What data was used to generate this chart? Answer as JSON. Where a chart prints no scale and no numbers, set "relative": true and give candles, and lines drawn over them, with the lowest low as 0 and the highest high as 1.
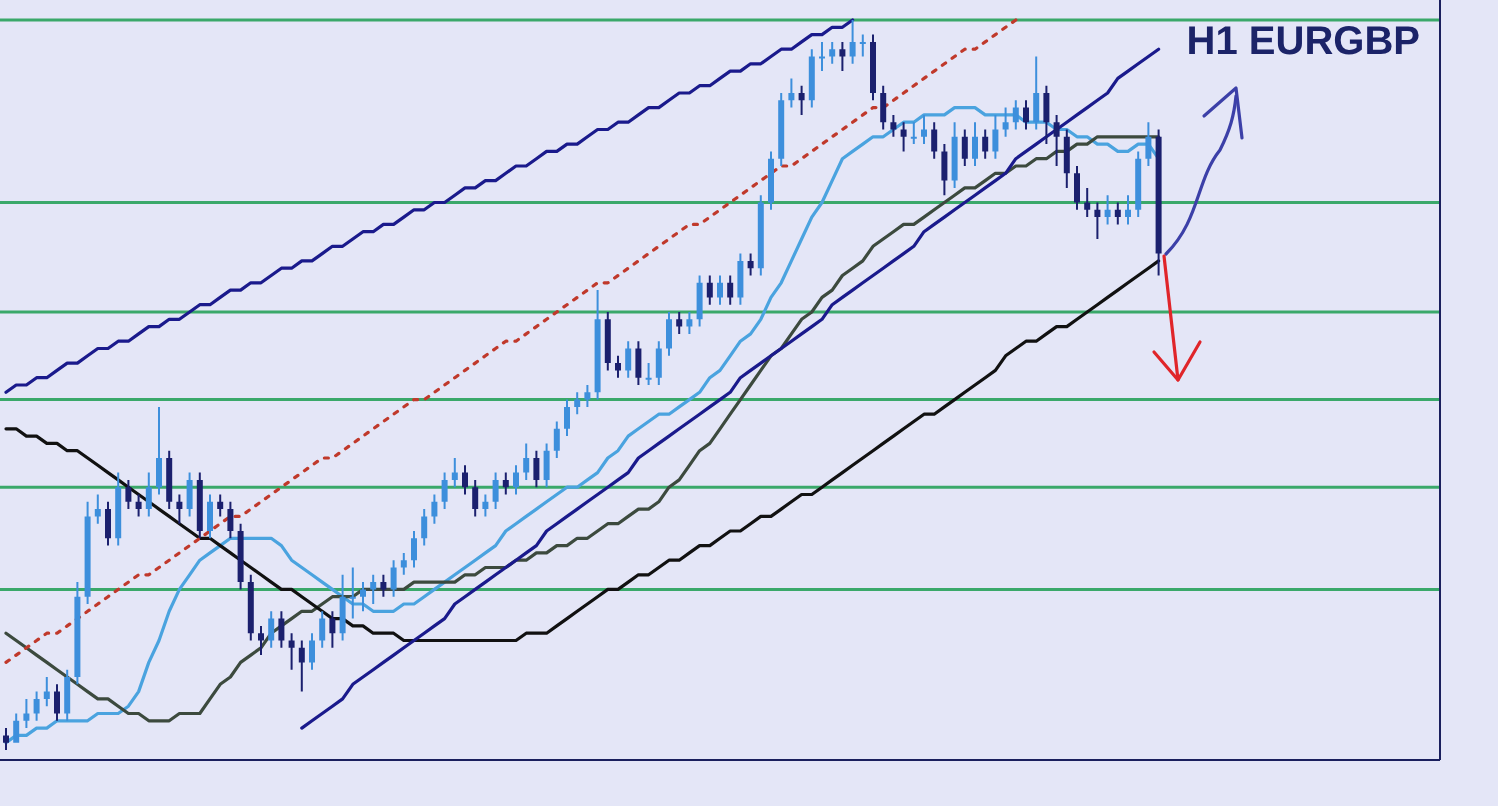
{
  "chart_data": {
    "type": "candlestick",
    "title": "H1 EURGBP",
    "relative": true,
    "categories": [
      null,
      null,
      null,
      null,
      null,
      null,
      null,
      null,
      null,
      null,
      null,
      null,
      null,
      null,
      null,
      null,
      null,
      null,
      null,
      null,
      null,
      null,
      null,
      null,
      null,
      null,
      null,
      null,
      null,
      null,
      null,
      null,
      null,
      null,
      null,
      null,
      null,
      null,
      null,
      null,
      null,
      null,
      null,
      null,
      null,
      null,
      null,
      null,
      null,
      null,
      null,
      null,
      null,
      null,
      null,
      null,
      null,
      null,
      null,
      null,
      null,
      null,
      null,
      null,
      null,
      null,
      null,
      null,
      null,
      null,
      null,
      null,
      null,
      null,
      null,
      null,
      null,
      null,
      null,
      null,
      null,
      null,
      null,
      null,
      null,
      null,
      null,
      null,
      null,
      null,
      null,
      null,
      null,
      null,
      null,
      null,
      null,
      null,
      null,
      null,
      null,
      null,
      null,
      null,
      null,
      null,
      null,
      null,
      null,
      null,
      null,
      null,
      null,
      null
    ],
    "colors": [
      "#1b206e",
      "#3d8fdc",
      "#3d8fdc",
      "#3d8fdc",
      "#3d8fdc",
      "#1b206e",
      "#3d8fdc",
      "#3d8fdc",
      "#3d8fdc",
      "#3d8fdc",
      "#1b206e",
      "#3d8fdc",
      "#1b206e",
      "#1b206e",
      "#3d8fdc",
      "#3d8fdc",
      "#1b206e",
      "#1b206e",
      "#3d8fdc",
      "#1b206e",
      "#3d8fdc",
      "#1b206e",
      "#1b206e",
      "#1b206e",
      "#1b206e",
      "#1b206e",
      "#3d8fdc",
      "#1b206e",
      "#1b206e",
      "#1b206e",
      "#3d8fdc",
      "#3d8fdc",
      "#1b206e",
      "#3d8fdc",
      "#3d8fdc",
      "#3d8fdc",
      "#3d8fdc",
      "#1b206e",
      "#3d8fdc",
      "#3d8fdc",
      "#3d8fdc",
      "#3d8fdc",
      "#3d8fdc",
      "#3d8fdc",
      "#3d8fdc",
      "#1b206e",
      "#1b206e",
      "#3d8fdc",
      "#3d8fdc",
      "#1b206e",
      "#3d8fdc",
      "#3d8fdc",
      "#1b206e",
      "#3d8fdc",
      "#3d8fdc",
      "#3d8fdc",
      "#3d8fdc",
      "#3d8fdc",
      "#3d8fdc",
      "#1b206e",
      "#1b206e",
      "#3d8fdc",
      "#1b206e",
      "#3d8fdc",
      "#3d8fdc",
      "#3d8fdc",
      "#1b206e",
      "#3d8fdc",
      "#3d8fdc",
      "#1b206e",
      "#3d8fdc",
      "#1b206e",
      "#3d8fdc",
      "#1b206e",
      "#3d8fdc",
      "#3d8fdc",
      "#3d8fdc",
      "#3d8fdc",
      "#1b206e",
      "#3d8fdc",
      "#3d8fdc",
      "#3d8fdc",
      "#1b206e",
      "#3d8fdc",
      "#3d8fdc",
      "#1b206e",
      "#1b206e",
      "#1b206e",
      "#1b206e",
      "#3d8fdc",
      "#3d8fdc",
      "#1b206e",
      "#1b206e",
      "#3d8fdc",
      "#1b206e",
      "#3d8fdc",
      "#1b206e",
      "#3d8fdc",
      "#3d8fdc",
      "#3d8fdc",
      "#1b206e",
      "#3d8fdc",
      "#1b206e",
      "#1b206e",
      "#1b206e",
      "#1b206e",
      "#1b206e",
      "#1b206e",
      "#3d8fdc",
      "#1b206e",
      "#3d8fdc",
      "#3d8fdc",
      "#3d8fdc",
      "#1b206e"
    ],
    "ohlc": [
      [
        0.02,
        0.03,
        0.0,
        0.01
      ],
      [
        0.01,
        0.05,
        0.01,
        0.04
      ],
      [
        0.04,
        0.07,
        0.03,
        0.05
      ],
      [
        0.05,
        0.08,
        0.04,
        0.07
      ],
      [
        0.07,
        0.1,
        0.06,
        0.08
      ],
      [
        0.08,
        0.09,
        0.04,
        0.05
      ],
      [
        0.05,
        0.11,
        0.04,
        0.1
      ],
      [
        0.1,
        0.23,
        0.09,
        0.21
      ],
      [
        0.21,
        0.34,
        0.2,
        0.32
      ],
      [
        0.32,
        0.35,
        0.31,
        0.33
      ],
      [
        0.33,
        0.34,
        0.28,
        0.29
      ],
      [
        0.29,
        0.38,
        0.28,
        0.36
      ],
      [
        0.36,
        0.37,
        0.33,
        0.34
      ],
      [
        0.34,
        0.35,
        0.32,
        0.33
      ],
      [
        0.33,
        0.38,
        0.32,
        0.36
      ],
      [
        0.36,
        0.47,
        0.35,
        0.4
      ],
      [
        0.4,
        0.41,
        0.33,
        0.34
      ],
      [
        0.34,
        0.35,
        0.31,
        0.33
      ],
      [
        0.33,
        0.38,
        0.32,
        0.37
      ],
      [
        0.37,
        0.38,
        0.29,
        0.3
      ],
      [
        0.3,
        0.35,
        0.29,
        0.34
      ],
      [
        0.34,
        0.35,
        0.32,
        0.33
      ],
      [
        0.33,
        0.34,
        0.29,
        0.3
      ],
      [
        0.3,
        0.31,
        0.22,
        0.23
      ],
      [
        0.23,
        0.24,
        0.15,
        0.16
      ],
      [
        0.16,
        0.17,
        0.13,
        0.15
      ],
      [
        0.15,
        0.19,
        0.14,
        0.18
      ],
      [
        0.18,
        0.19,
        0.14,
        0.15
      ],
      [
        0.15,
        0.16,
        0.11,
        0.14
      ],
      [
        0.14,
        0.15,
        0.08,
        0.12
      ],
      [
        0.12,
        0.16,
        0.11,
        0.15
      ],
      [
        0.15,
        0.19,
        0.14,
        0.18
      ],
      [
        0.18,
        0.19,
        0.14,
        0.16
      ],
      [
        0.16,
        0.24,
        0.15,
        0.21
      ],
      [
        0.21,
        0.25,
        0.18,
        0.21
      ],
      [
        0.21,
        0.23,
        0.19,
        0.22
      ],
      [
        0.22,
        0.24,
        0.2,
        0.23
      ],
      [
        0.23,
        0.24,
        0.21,
        0.22
      ],
      [
        0.22,
        0.26,
        0.21,
        0.25
      ],
      [
        0.25,
        0.27,
        0.24,
        0.26
      ],
      [
        0.26,
        0.3,
        0.25,
        0.29
      ],
      [
        0.29,
        0.33,
        0.28,
        0.32
      ],
      [
        0.32,
        0.35,
        0.31,
        0.34
      ],
      [
        0.34,
        0.38,
        0.33,
        0.37
      ],
      [
        0.37,
        0.4,
        0.36,
        0.38
      ],
      [
        0.38,
        0.39,
        0.35,
        0.36
      ],
      [
        0.36,
        0.37,
        0.32,
        0.33
      ],
      [
        0.33,
        0.35,
        0.32,
        0.34
      ],
      [
        0.34,
        0.38,
        0.33,
        0.37
      ],
      [
        0.37,
        0.38,
        0.35,
        0.36
      ],
      [
        0.36,
        0.39,
        0.35,
        0.38
      ],
      [
        0.38,
        0.42,
        0.37,
        0.4
      ],
      [
        0.4,
        0.41,
        0.36,
        0.37
      ],
      [
        0.37,
        0.42,
        0.36,
        0.41
      ],
      [
        0.41,
        0.45,
        0.4,
        0.44
      ],
      [
        0.44,
        0.48,
        0.43,
        0.47
      ],
      [
        0.47,
        0.49,
        0.46,
        0.48
      ],
      [
        0.48,
        0.5,
        0.47,
        0.49
      ],
      [
        0.49,
        0.63,
        0.48,
        0.59
      ],
      [
        0.59,
        0.6,
        0.52,
        0.53
      ],
      [
        0.53,
        0.54,
        0.51,
        0.52
      ],
      [
        0.52,
        0.56,
        0.51,
        0.55
      ],
      [
        0.55,
        0.56,
        0.5,
        0.51
      ],
      [
        0.51,
        0.53,
        0.5,
        0.51
      ],
      [
        0.51,
        0.56,
        0.5,
        0.55
      ],
      [
        0.55,
        0.6,
        0.54,
        0.59
      ],
      [
        0.59,
        0.6,
        0.57,
        0.58
      ],
      [
        0.58,
        0.6,
        0.57,
        0.59
      ],
      [
        0.59,
        0.65,
        0.58,
        0.64
      ],
      [
        0.64,
        0.65,
        0.61,
        0.62
      ],
      [
        0.62,
        0.65,
        0.61,
        0.64
      ],
      [
        0.64,
        0.65,
        0.61,
        0.62
      ],
      [
        0.62,
        0.68,
        0.61,
        0.67
      ],
      [
        0.67,
        0.68,
        0.65,
        0.66
      ],
      [
        0.66,
        0.76,
        0.65,
        0.75
      ],
      [
        0.75,
        0.82,
        0.74,
        0.81
      ],
      [
        0.81,
        0.9,
        0.8,
        0.89
      ],
      [
        0.89,
        0.92,
        0.88,
        0.9
      ],
      [
        0.9,
        0.91,
        0.87,
        0.89
      ],
      [
        0.89,
        0.96,
        0.88,
        0.95
      ],
      [
        0.95,
        0.97,
        0.93,
        0.95
      ],
      [
        0.95,
        0.97,
        0.94,
        0.96
      ],
      [
        0.96,
        0.97,
        0.93,
        0.95
      ],
      [
        0.95,
        1.0,
        0.94,
        0.97
      ],
      [
        0.97,
        0.98,
        0.95,
        0.97
      ],
      [
        0.97,
        0.98,
        0.89,
        0.9
      ],
      [
        0.9,
        0.91,
        0.85,
        0.86
      ],
      [
        0.86,
        0.87,
        0.84,
        0.85
      ],
      [
        0.85,
        0.86,
        0.82,
        0.84
      ],
      [
        0.84,
        0.86,
        0.83,
        0.84
      ],
      [
        0.84,
        0.87,
        0.83,
        0.85
      ],
      [
        0.85,
        0.86,
        0.81,
        0.82
      ],
      [
        0.82,
        0.83,
        0.76,
        0.78
      ],
      [
        0.78,
        0.86,
        0.77,
        0.84
      ],
      [
        0.84,
        0.85,
        0.8,
        0.81
      ],
      [
        0.81,
        0.86,
        0.8,
        0.84
      ],
      [
        0.84,
        0.85,
        0.81,
        0.82
      ],
      [
        0.82,
        0.87,
        0.81,
        0.85
      ],
      [
        0.85,
        0.88,
        0.84,
        0.86
      ],
      [
        0.86,
        0.89,
        0.85,
        0.88
      ],
      [
        0.88,
        0.89,
        0.85,
        0.86
      ],
      [
        0.86,
        0.95,
        0.85,
        0.9
      ],
      [
        0.9,
        0.91,
        0.83,
        0.86
      ],
      [
        0.86,
        0.87,
        0.8,
        0.84
      ],
      [
        0.84,
        0.85,
        0.77,
        0.79
      ],
      [
        0.79,
        0.8,
        0.74,
        0.75
      ],
      [
        0.75,
        0.77,
        0.73,
        0.74
      ],
      [
        0.74,
        0.75,
        0.7,
        0.73
      ],
      [
        0.73,
        0.76,
        0.72,
        0.74
      ],
      [
        0.74,
        0.75,
        0.72,
        0.73
      ],
      [
        0.73,
        0.76,
        0.72,
        0.74
      ],
      [
        0.74,
        0.82,
        0.73,
        0.81
      ],
      [
        0.81,
        0.86,
        0.8,
        0.84
      ],
      [
        0.84,
        0.85,
        0.65,
        0.68
      ]
    ],
    "series": [
      {
        "type": "line",
        "color": "#4aa3df",
        "values": [
          0.01,
          0.02,
          0.02,
          0.03,
          0.03,
          0.04,
          0.04,
          0.04,
          0.04,
          0.05,
          0.05,
          0.05,
          0.06,
          0.08,
          0.12,
          0.15,
          0.19,
          0.22,
          0.24,
          0.26,
          0.27,
          0.28,
          0.29,
          0.29,
          0.29,
          0.29,
          0.29,
          0.28,
          0.26,
          0.25,
          0.24,
          0.23,
          0.22,
          0.21,
          0.2,
          0.2,
          0.19,
          0.19,
          0.19,
          0.2,
          0.2,
          0.21,
          0.22,
          0.23,
          0.24,
          0.25,
          0.26,
          0.27,
          0.28,
          0.3,
          0.31,
          0.32,
          0.33,
          0.34,
          0.35,
          0.36,
          0.36,
          0.37,
          0.38,
          0.4,
          0.41,
          0.43,
          0.44,
          0.45,
          0.46,
          0.46,
          0.47,
          0.48,
          0.49,
          0.51,
          0.52,
          0.54,
          0.56,
          0.57,
          0.59,
          0.62,
          0.64,
          0.67,
          0.7,
          0.73,
          0.75,
          0.78,
          0.81,
          0.82,
          0.83,
          0.84,
          0.84,
          0.85,
          0.86,
          0.86,
          0.87,
          0.87,
          0.87,
          0.88,
          0.88,
          0.88,
          0.87,
          0.87,
          0.87,
          0.87,
          0.86,
          0.86,
          0.86,
          0.85,
          0.85,
          0.84,
          0.84,
          0.83,
          0.83,
          0.82,
          0.82,
          0.83,
          0.83,
          0.81
        ]
      },
      {
        "type": "line",
        "color": "#3c4a3e",
        "values": [
          0.16,
          0.15,
          0.14,
          0.13,
          0.12,
          0.11,
          0.1,
          0.09,
          0.08,
          0.07,
          0.07,
          0.06,
          0.05,
          0.05,
          0.04,
          0.04,
          0.04,
          0.05,
          0.05,
          0.05,
          0.07,
          0.09,
          0.1,
          0.12,
          0.13,
          0.14,
          0.16,
          0.17,
          0.18,
          0.19,
          0.19,
          0.2,
          0.21,
          0.21,
          0.21,
          0.22,
          0.22,
          0.22,
          0.22,
          0.22,
          0.23,
          0.23,
          0.23,
          0.23,
          0.23,
          0.24,
          0.24,
          0.25,
          0.25,
          0.25,
          0.26,
          0.26,
          0.27,
          0.27,
          0.28,
          0.28,
          0.29,
          0.29,
          0.3,
          0.31,
          0.31,
          0.32,
          0.33,
          0.33,
          0.34,
          0.36,
          0.37,
          0.39,
          0.41,
          0.42,
          0.44,
          0.46,
          0.48,
          0.5,
          0.52,
          0.54,
          0.55,
          0.57,
          0.59,
          0.6,
          0.62,
          0.63,
          0.65,
          0.66,
          0.67,
          0.69,
          0.7,
          0.71,
          0.72,
          0.72,
          0.73,
          0.74,
          0.75,
          0.76,
          0.77,
          0.77,
          0.78,
          0.79,
          0.79,
          0.8,
          0.8,
          0.81,
          0.81,
          0.82,
          0.82,
          0.83,
          0.83,
          0.84,
          0.84,
          0.84,
          0.84,
          0.84,
          0.84,
          0.84
        ]
      },
      {
        "type": "line",
        "color": "#111111",
        "values": [
          0.44,
          0.44,
          0.43,
          0.43,
          0.42,
          0.42,
          0.41,
          0.41,
          0.4,
          0.39,
          0.38,
          0.37,
          0.36,
          0.35,
          0.34,
          0.33,
          0.32,
          0.31,
          0.3,
          0.29,
          0.29,
          0.28,
          0.27,
          0.26,
          0.25,
          0.24,
          0.23,
          0.22,
          0.22,
          0.21,
          0.2,
          0.19,
          0.18,
          0.18,
          0.17,
          0.17,
          0.16,
          0.16,
          0.16,
          0.15,
          0.15,
          0.15,
          0.15,
          0.15,
          0.15,
          0.15,
          0.15,
          0.15,
          0.15,
          0.15,
          0.15,
          0.16,
          0.16,
          0.16,
          0.17,
          0.18,
          0.19,
          0.2,
          0.21,
          0.22,
          0.22,
          0.23,
          0.24,
          0.24,
          0.25,
          0.26,
          0.26,
          0.27,
          0.28,
          0.28,
          0.29,
          0.3,
          0.3,
          0.31,
          0.32,
          0.32,
          0.33,
          0.34,
          0.35,
          0.35,
          0.36,
          0.37,
          0.38,
          0.39,
          0.4,
          0.41,
          0.42,
          0.43,
          0.44,
          0.45,
          0.46,
          0.46,
          0.47,
          0.48,
          0.49,
          0.5,
          0.51,
          0.52,
          0.54,
          0.55,
          0.56,
          0.56,
          0.57,
          0.58,
          0.58,
          0.59,
          0.6,
          0.61,
          0.62,
          0.63,
          0.64,
          0.65,
          0.66,
          0.67
        ]
      },
      {
        "type": "line",
        "color": "#1a1a8c",
        "values": [
          0.49,
          0.5,
          0.5,
          0.51,
          0.51,
          0.52,
          0.53,
          0.53,
          0.54,
          0.55,
          0.55,
          0.56,
          0.56,
          0.57,
          0.58,
          0.58,
          0.59,
          0.59,
          0.6,
          0.61,
          0.61,
          0.62,
          0.63,
          0.63,
          0.64,
          0.64,
          0.65,
          0.66,
          0.66,
          0.67,
          0.67,
          0.68,
          0.69,
          0.69,
          0.7,
          0.71,
          0.71,
          0.72,
          0.72,
          0.73,
          0.74,
          0.74,
          0.75,
          0.75,
          0.76,
          0.77,
          0.77,
          0.78,
          0.78,
          0.79,
          0.8,
          0.8,
          0.81,
          0.82,
          0.82,
          0.83,
          0.83,
          0.84,
          0.85,
          0.85,
          0.86,
          0.86,
          0.87,
          0.88,
          0.88,
          0.89,
          0.9,
          0.9,
          0.91,
          0.91,
          0.92,
          0.93,
          0.93,
          0.94,
          0.94,
          0.95,
          0.96,
          0.96,
          0.97,
          0.98,
          0.98,
          0.99,
          0.99,
          1.0,
          null,
          null,
          null,
          null,
          null,
          null,
          null,
          null,
          null,
          null,
          null,
          null,
          null,
          null,
          null,
          null,
          null,
          null,
          null,
          null,
          null,
          null,
          null,
          null,
          null,
          null,
          null,
          null,
          null,
          null
        ]
      },
      {
        "type": "line",
        "color": "#1a1a8c",
        "values": [
          null,
          null,
          null,
          null,
          null,
          null,
          null,
          null,
          null,
          null,
          null,
          null,
          null,
          null,
          null,
          null,
          null,
          null,
          null,
          null,
          null,
          null,
          null,
          null,
          null,
          null,
          null,
          null,
          null,
          0.03,
          0.04,
          0.05,
          0.06,
          0.07,
          0.09,
          0.1,
          0.11,
          0.12,
          0.13,
          0.14,
          0.15,
          0.16,
          0.17,
          0.18,
          0.2,
          0.21,
          0.22,
          0.23,
          0.24,
          0.25,
          0.26,
          0.27,
          0.28,
          0.3,
          0.31,
          0.32,
          0.33,
          0.34,
          0.35,
          0.36,
          0.37,
          0.38,
          0.4,
          0.41,
          0.42,
          0.43,
          0.44,
          0.45,
          0.46,
          0.47,
          0.48,
          0.49,
          0.51,
          0.52,
          0.53,
          0.54,
          0.55,
          0.56,
          0.57,
          0.58,
          0.59,
          0.61,
          0.62,
          0.63,
          0.64,
          0.65,
          0.66,
          0.67,
          0.68,
          0.69,
          0.71,
          0.72,
          0.73,
          0.74,
          0.75,
          0.76,
          0.77,
          0.78,
          0.79,
          0.81,
          0.82,
          0.83,
          0.84,
          0.85,
          0.86,
          0.87,
          0.88,
          0.89,
          0.9,
          0.92,
          0.93,
          0.94,
          0.95,
          0.96
        ]
      },
      {
        "type": "line",
        "color": "#c0392b",
        "line_style": "dotted",
        "values": [
          0.12,
          0.13,
          0.14,
          0.15,
          0.16,
          0.16,
          0.17,
          0.18,
          0.19,
          0.2,
          0.21,
          0.22,
          0.23,
          0.24,
          0.24,
          0.25,
          0.26,
          0.27,
          0.28,
          0.29,
          0.3,
          0.31,
          0.32,
          0.32,
          0.33,
          0.34,
          0.35,
          0.36,
          0.37,
          0.38,
          0.39,
          0.4,
          0.4,
          0.41,
          0.42,
          0.43,
          0.44,
          0.45,
          0.46,
          0.47,
          0.48,
          0.48,
          0.49,
          0.5,
          0.51,
          0.52,
          0.53,
          0.54,
          0.55,
          0.56,
          0.56,
          0.57,
          0.58,
          0.59,
          0.6,
          0.61,
          0.62,
          0.63,
          0.64,
          0.64,
          0.65,
          0.66,
          0.67,
          0.68,
          0.69,
          0.7,
          0.71,
          0.72,
          0.72,
          0.73,
          0.74,
          0.75,
          0.76,
          0.77,
          0.78,
          0.79,
          0.8,
          0.8,
          0.81,
          0.82,
          0.83,
          0.84,
          0.85,
          0.86,
          0.87,
          0.88,
          0.88,
          0.89,
          0.9,
          0.91,
          0.92,
          0.93,
          0.94,
          0.95,
          0.96,
          0.96,
          0.97,
          0.98,
          0.99,
          1.0,
          null,
          null,
          null,
          null,
          null,
          null,
          null,
          null,
          null,
          null,
          null,
          null,
          null,
          null
        ]
      }
    ],
    "ref_lines": [
      {
        "axis": "y",
        "value": 1.0,
        "color": "#3aa86a"
      },
      {
        "axis": "y",
        "value": 0.75,
        "color": "#3aa86a"
      },
      {
        "axis": "y",
        "value": 0.6,
        "color": "#3aa86a"
      },
      {
        "axis": "y",
        "value": 0.48,
        "color": "#3aa86a"
      },
      {
        "axis": "y",
        "value": 0.36,
        "color": "#3aa86a"
      },
      {
        "axis": "y",
        "value": 0.22,
        "color": "#3aa86a"
      }
    ]
  }
}
